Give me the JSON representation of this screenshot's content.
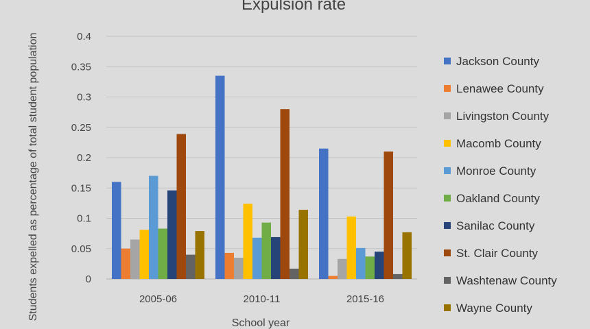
{
  "chart_data": {
    "type": "bar",
    "title": "Expulsion rate",
    "xlabel": "School year",
    "ylabel": "Students expelled as percentage of total student population",
    "categories": [
      "2005-06",
      "2010-11",
      "2015-16"
    ],
    "ylim": [
      0,
      0.4
    ],
    "yticks": [
      "0",
      "0.05",
      "0.1",
      "0.15",
      "0.2",
      "0.25",
      "0.3",
      "0.35",
      "0.4"
    ],
    "grid": true,
    "legend_position": "right",
    "series": [
      {
        "name": "Jackson County",
        "color": "#4472c4",
        "values": [
          0.16,
          0.335,
          0.215
        ]
      },
      {
        "name": "Lenawee County",
        "color": "#ed7d31",
        "values": [
          0.05,
          0.043,
          0.005
        ]
      },
      {
        "name": "Livingston County",
        "color": "#a5a5a5",
        "values": [
          0.065,
          0.035,
          0.033
        ]
      },
      {
        "name": "Macomb County",
        "color": "#ffc000",
        "values": [
          0.081,
          0.124,
          0.103
        ]
      },
      {
        "name": "Monroe County",
        "color": "#5b9bd5",
        "values": [
          0.17,
          0.068,
          0.051
        ]
      },
      {
        "name": "Oakland County",
        "color": "#70ad47",
        "values": [
          0.083,
          0.093,
          0.037
        ]
      },
      {
        "name": "Sanilac County",
        "color": "#264478",
        "values": [
          0.146,
          0.069,
          0.045
        ]
      },
      {
        "name": "St. Clair County",
        "color": "#9e480e",
        "values": [
          0.239,
          0.28,
          0.21
        ]
      },
      {
        "name": "Washtenaw County",
        "color": "#636363",
        "values": [
          0.04,
          0.017,
          0.008
        ]
      },
      {
        "name": "Wayne County",
        "color": "#997300",
        "values": [
          0.079,
          0.114,
          0.077
        ]
      }
    ]
  }
}
